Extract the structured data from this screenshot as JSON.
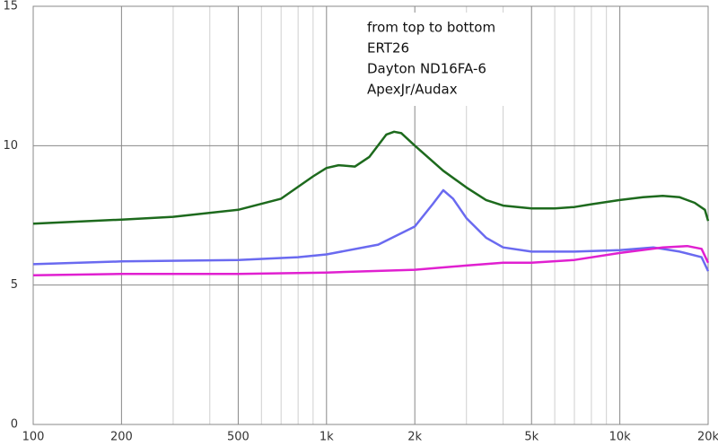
{
  "chart_data": {
    "type": "line",
    "annotation": "from top to bottom",
    "xlog": true,
    "xlim": [
      100,
      20000
    ],
    "ylim": [
      0,
      15
    ],
    "xticks": [
      100,
      200,
      500,
      {
        "value": 1000,
        "label": "1k"
      },
      {
        "value": 2000,
        "label": "2k"
      },
      {
        "value": 5000,
        "label": "5k"
      },
      {
        "value": 10000,
        "label": "10k"
      },
      {
        "value": 20000,
        "label": "20k"
      }
    ],
    "xminorticks": [
      300,
      400,
      600,
      700,
      800,
      900,
      3000,
      4000,
      6000,
      7000,
      8000,
      9000
    ],
    "yticks": [
      0,
      5,
      10,
      15
    ],
    "grid": true,
    "series": [
      {
        "name": "ERT26",
        "color": "#1d6a1d",
        "x": [
          100,
          200,
          300,
          500,
          700,
          900,
          1000,
          1100,
          1250,
          1400,
          1600,
          1700,
          1800,
          2000,
          2500,
          3000,
          3500,
          4000,
          5000,
          6000,
          7000,
          8000,
          10000,
          12000,
          14000,
          16000,
          18000,
          19500,
          20000
        ],
        "values": [
          7.2,
          7.35,
          7.45,
          7.7,
          8.1,
          8.9,
          9.2,
          9.3,
          9.25,
          9.6,
          10.4,
          10.5,
          10.45,
          10.0,
          9.1,
          8.5,
          8.05,
          7.85,
          7.75,
          7.75,
          7.8,
          7.9,
          8.05,
          8.15,
          8.2,
          8.15,
          7.95,
          7.7,
          7.3
        ]
      },
      {
        "name": "Dayton ND16FA-6",
        "color": "#6a6af0",
        "x": [
          100,
          200,
          500,
          800,
          1000,
          1500,
          2000,
          2300,
          2500,
          2700,
          3000,
          3500,
          4000,
          5000,
          7000,
          10000,
          13000,
          16000,
          19000,
          20000
        ],
        "values": [
          5.75,
          5.85,
          5.9,
          6.0,
          6.1,
          6.45,
          7.1,
          7.9,
          8.4,
          8.1,
          7.4,
          6.7,
          6.35,
          6.2,
          6.2,
          6.25,
          6.35,
          6.2,
          6.0,
          5.5
        ]
      },
      {
        "name": "ApexJr/Audax",
        "color": "#e020d0",
        "x": [
          100,
          200,
          500,
          1000,
          2000,
          3000,
          4000,
          5000,
          7000,
          10000,
          14000,
          17000,
          19000,
          20000
        ],
        "values": [
          5.35,
          5.4,
          5.4,
          5.45,
          5.55,
          5.7,
          5.8,
          5.8,
          5.9,
          6.15,
          6.35,
          6.4,
          6.3,
          5.8
        ]
      }
    ]
  }
}
